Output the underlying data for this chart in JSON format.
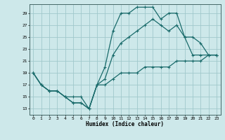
{
  "xlabel": "Humidex (Indice chaleur)",
  "bg_color": "#cde8ea",
  "grid_color": "#a0c8cc",
  "line_color": "#1a6b6b",
  "xlim": [
    -0.5,
    23.5
  ],
  "ylim": [
    12,
    30.5
  ],
  "xticks": [
    0,
    1,
    2,
    3,
    4,
    5,
    6,
    7,
    8,
    9,
    10,
    11,
    12,
    13,
    14,
    15,
    16,
    17,
    18,
    19,
    20,
    21,
    22,
    23
  ],
  "yticks": [
    13,
    15,
    17,
    19,
    21,
    23,
    25,
    27,
    29
  ],
  "series1_x": [
    0,
    1,
    2,
    3,
    4,
    5,
    6,
    7,
    8,
    9,
    10,
    11,
    12,
    13,
    14,
    15,
    16,
    17,
    18,
    19,
    20,
    21,
    22,
    23
  ],
  "series1_y": [
    19,
    17,
    16,
    16,
    15,
    14,
    14,
    13,
    17,
    20,
    26,
    29,
    29,
    30,
    30,
    30,
    28,
    29,
    29,
    25,
    25,
    24,
    22,
    22
  ],
  "series2_x": [
    0,
    1,
    2,
    3,
    4,
    5,
    6,
    7,
    8,
    9,
    10,
    11,
    12,
    13,
    14,
    15,
    16,
    17,
    18,
    19,
    20,
    21,
    22,
    23
  ],
  "series2_y": [
    19,
    17,
    16,
    16,
    15,
    14,
    14,
    13,
    17,
    18,
    22,
    24,
    25,
    26,
    27,
    28,
    27,
    26,
    27,
    25,
    22,
    22,
    22,
    22
  ],
  "series3_x": [
    0,
    1,
    2,
    3,
    4,
    5,
    6,
    7,
    8,
    9,
    10,
    11,
    12,
    13,
    14,
    15,
    16,
    17,
    18,
    19,
    20,
    21,
    22,
    23
  ],
  "series3_y": [
    19,
    17,
    16,
    16,
    15,
    15,
    15,
    13,
    17,
    17,
    18,
    19,
    19,
    19,
    20,
    20,
    20,
    20,
    21,
    21,
    21,
    21,
    22,
    22
  ]
}
